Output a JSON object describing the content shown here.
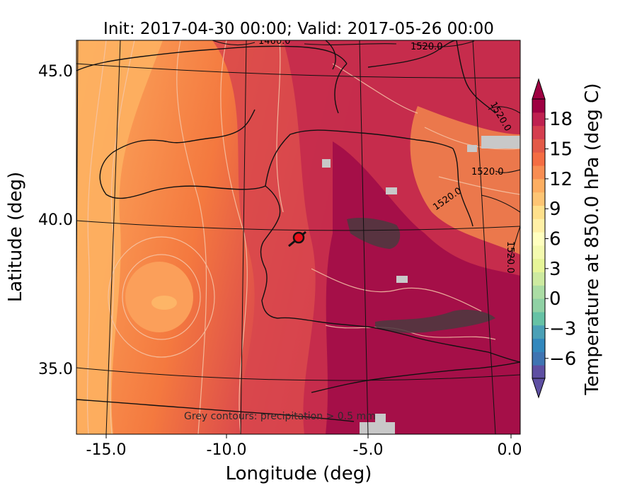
{
  "title": "Init: 2017-04-30 00:00; Valid: 2017-05-26 00:00",
  "xlabel": "Longitude (deg)",
  "ylabel": "Latitude (deg)",
  "colorbar_label": "Temperature at 850.0 hPa (deg C)",
  "annotation": "Grey contours: precipitation > 0.5 mm",
  "x_ticks": [
    "-15.0",
    "-10.0",
    "-5.0",
    "0.0"
  ],
  "y_ticks": [
    "45.0",
    "40.0",
    "35.0"
  ],
  "colorbar_ticks": [
    "18",
    "15",
    "12",
    "9",
    "6",
    "3",
    "0",
    "−3",
    "−6"
  ],
  "height_contour_labels": [
    "1460.0",
    "1520.0",
    "1520.0",
    "1520.0",
    "1520.0",
    "1520.0"
  ],
  "colors": {
    "warm_dark": "#a50f48",
    "warm": "#cd3a4a",
    "orange": "#f47e45",
    "light_orange": "#fca55d",
    "precip": "#c8c8c8",
    "marker": "#e8101a"
  },
  "chart_data": {
    "type": "map",
    "projection": "conic",
    "extent": {
      "lon": [
        -16,
        0.3
      ],
      "lat": [
        32.5,
        46
      ]
    },
    "colorbar": {
      "range": [
        -8,
        20
      ],
      "ticks": [
        18,
        15,
        12,
        9,
        6,
        3,
        0,
        -3,
        -6
      ],
      "colormap": "Spectral_r",
      "extend": "both"
    },
    "marker": {
      "lon": -7.7,
      "lat": 39.4
    },
    "fields": [
      {
        "name": "temperature_850hPa",
        "units": "deg C",
        "style": "filled"
      },
      {
        "name": "geopotential_height",
        "style": "black contours"
      },
      {
        "name": "precipitation",
        "threshold_mm": 0.5,
        "style": "grey contours"
      }
    ]
  }
}
